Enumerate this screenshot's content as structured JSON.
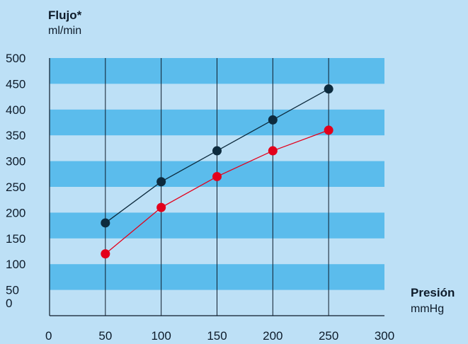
{
  "chart_data": {
    "type": "line",
    "ylabel": "Flujo*",
    "yunit": "ml/min",
    "xlabel": "Presión",
    "xunit": "mmHg",
    "xlim": [
      0,
      300
    ],
    "ylim": [
      0,
      500
    ],
    "x_ticks": [
      "0",
      "50",
      "100",
      "150",
      "200",
      "250",
      "300"
    ],
    "y_ticks": [
      "0",
      "50",
      "100",
      "150",
      "200",
      "250",
      "300",
      "350",
      "400",
      "450",
      "500"
    ],
    "grid": "vertical lines at x ticks, alternating horizontal bands",
    "series": [
      {
        "color": "#0d2b3e",
        "x": [
          50,
          100,
          150,
          200,
          250
        ],
        "y": [
          180,
          260,
          320,
          380,
          440
        ]
      },
      {
        "color": "#e3001b",
        "x": [
          50,
          100,
          150,
          200,
          250
        ],
        "y": [
          120,
          210,
          270,
          320,
          360
        ]
      }
    ]
  },
  "colors": {
    "background": "#bde0f6",
    "band": "#5bbcec",
    "axis": "#0d1b2a"
  }
}
